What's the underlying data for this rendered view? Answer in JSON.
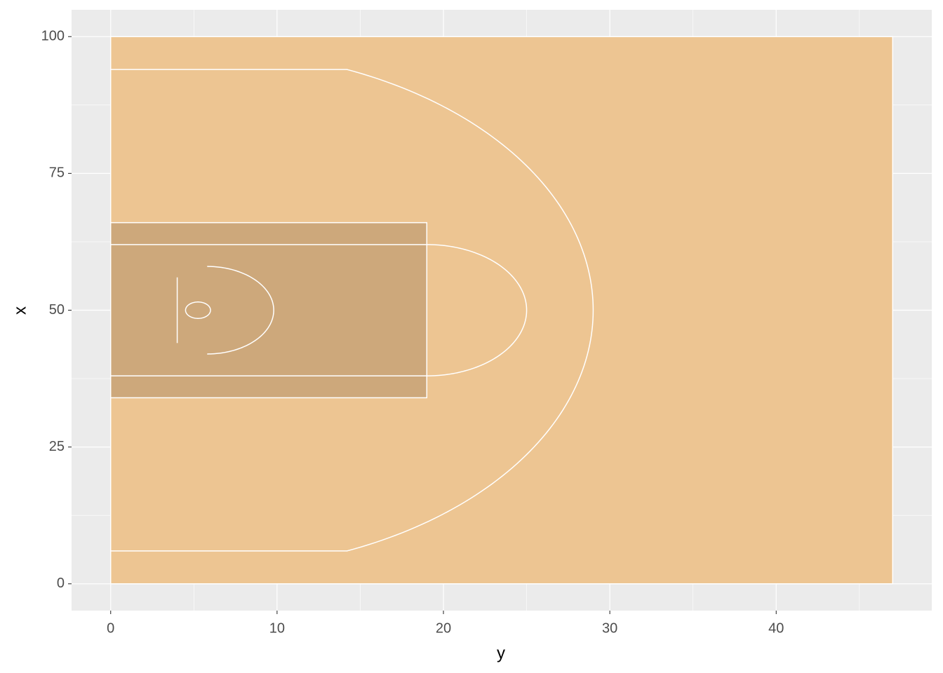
{
  "chart_data": {
    "type": "court",
    "x_label": "y",
    "y_label": "x",
    "xlim": [
      -2.35,
      49.35
    ],
    "ylim": [
      -4.9,
      104.9
    ],
    "xticks": [
      0,
      10,
      20,
      30,
      40
    ],
    "yticks": [
      0,
      25,
      50,
      75,
      100
    ],
    "grid": true,
    "panel_color": "#ebebeb",
    "line_color": "#ffffff",
    "shapes": [
      {
        "kind": "rect",
        "h": [
          0,
          47
        ],
        "v": [
          0,
          100
        ],
        "fill": "#edc592"
      },
      {
        "kind": "rect",
        "h": [
          0,
          19
        ],
        "v": [
          34,
          66
        ],
        "fill": "#cda87b"
      },
      {
        "kind": "segment",
        "h": [
          0,
          19
        ],
        "v": [
          38,
          38
        ]
      },
      {
        "kind": "segment",
        "h": [
          0,
          19
        ],
        "v": [
          62,
          62
        ]
      },
      {
        "kind": "segment",
        "h": [
          0,
          14.2
        ],
        "v": [
          6,
          6
        ]
      },
      {
        "kind": "segment",
        "h": [
          0,
          14.2
        ],
        "v": [
          94,
          94
        ]
      },
      {
        "kind": "segment",
        "h": [
          4,
          4
        ],
        "v": [
          44,
          56
        ]
      },
      {
        "kind": "arc",
        "center": [
          19,
          50
        ],
        "radii": [
          6,
          12
        ],
        "angles": [
          -90,
          90
        ]
      },
      {
        "kind": "arc",
        "center": [
          5.25,
          50
        ],
        "radii": [
          23.75,
          47.5
        ],
        "angles": [
          -67.9,
          67.9
        ]
      },
      {
        "kind": "arc",
        "center": [
          5.8,
          50
        ],
        "radii": [
          4,
          8
        ],
        "angles": [
          -90,
          90
        ]
      },
      {
        "kind": "arc",
        "center": [
          5.25,
          50
        ],
        "radii": [
          0.75,
          1.5
        ],
        "angles": [
          -180,
          180
        ]
      }
    ]
  }
}
